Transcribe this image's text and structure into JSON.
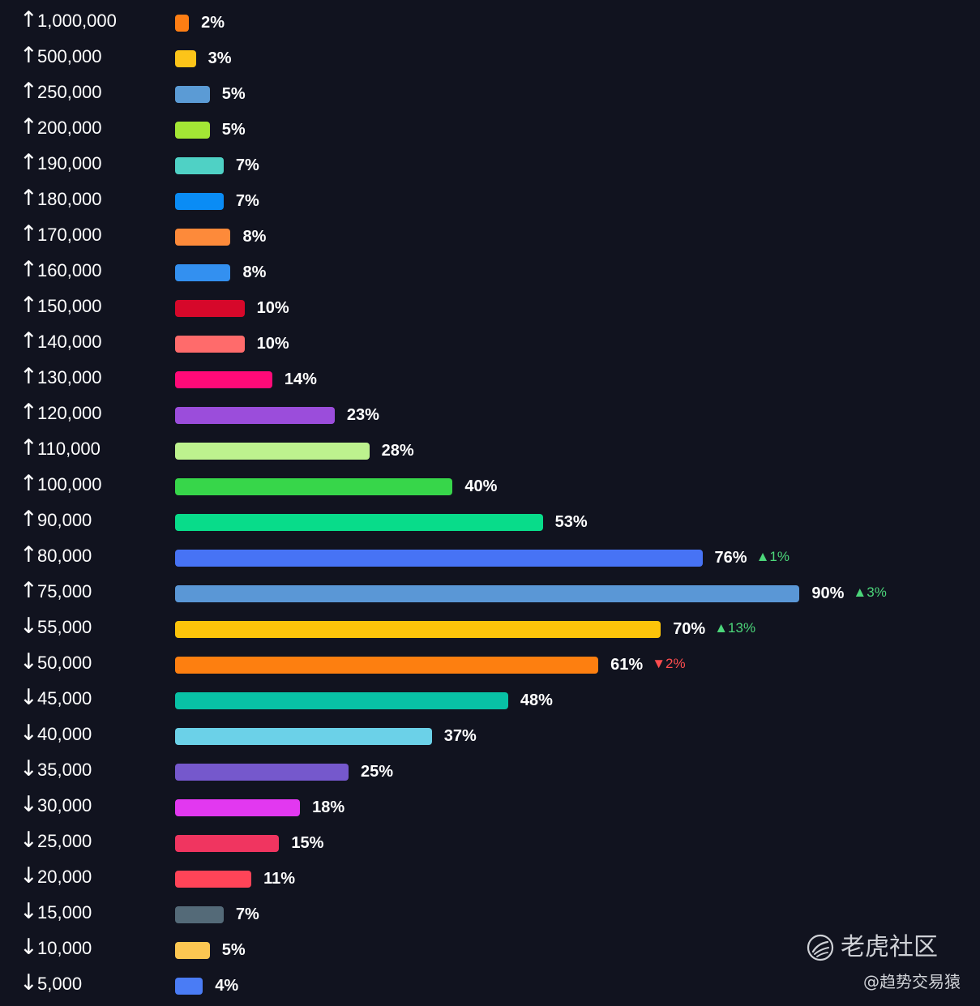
{
  "chart_data": {
    "type": "bar",
    "orientation": "horizontal",
    "title": "",
    "xlabel": "",
    "ylabel": "",
    "xlim": [
      0,
      100
    ],
    "rows": [
      {
        "direction": "↑",
        "label": "1,000,000",
        "value": 2,
        "pct_label": "2%",
        "color": "#fd7e14",
        "delta": null
      },
      {
        "direction": "↑",
        "label": "500,000",
        "value": 3,
        "pct_label": "3%",
        "color": "#fcc419",
        "delta": null
      },
      {
        "direction": "↑",
        "label": "250,000",
        "value": 5,
        "pct_label": "5%",
        "color": "#5b9bd5",
        "delta": null
      },
      {
        "direction": "↑",
        "label": "200,000",
        "value": 5,
        "pct_label": "5%",
        "color": "#a3e635",
        "delta": null
      },
      {
        "direction": "↑",
        "label": "190,000",
        "value": 7,
        "pct_label": "7%",
        "color": "#4fd1c5",
        "delta": null
      },
      {
        "direction": "↑",
        "label": "180,000",
        "value": 7,
        "pct_label": "7%",
        "color": "#0a8cf5",
        "delta": null
      },
      {
        "direction": "↑",
        "label": "170,000",
        "value": 8,
        "pct_label": "8%",
        "color": "#fd8a3a",
        "delta": null
      },
      {
        "direction": "↑",
        "label": "160,000",
        "value": 8,
        "pct_label": "8%",
        "color": "#3390f0",
        "delta": null
      },
      {
        "direction": "↑",
        "label": "150,000",
        "value": 10,
        "pct_label": "10%",
        "color": "#d6082a",
        "delta": null
      },
      {
        "direction": "↑",
        "label": "140,000",
        "value": 10,
        "pct_label": "10%",
        "color": "#ff6b6b",
        "delta": null
      },
      {
        "direction": "↑",
        "label": "130,000",
        "value": 14,
        "pct_label": "14%",
        "color": "#ff0a78",
        "delta": null
      },
      {
        "direction": "↑",
        "label": "120,000",
        "value": 23,
        "pct_label": "23%",
        "color": "#9b4ddb",
        "delta": null
      },
      {
        "direction": "↑",
        "label": "110,000",
        "value": 28,
        "pct_label": "28%",
        "color": "#bdf28e",
        "delta": null
      },
      {
        "direction": "↑",
        "label": "100,000",
        "value": 40,
        "pct_label": "40%",
        "color": "#37d64a",
        "delta": null
      },
      {
        "direction": "↑",
        "label": "90,000",
        "value": 53,
        "pct_label": "53%",
        "color": "#08dc8a",
        "delta": null
      },
      {
        "direction": "↑",
        "label": "80,000",
        "value": 76,
        "pct_label": "76%",
        "color": "#4773f5",
        "delta": {
          "dir": "up",
          "text": "▲1%"
        }
      },
      {
        "direction": "↑",
        "label": "75,000",
        "value": 90,
        "pct_label": "90%",
        "color": "#5a97d6",
        "delta": {
          "dir": "up",
          "text": "▲3%"
        }
      },
      {
        "direction": "↓",
        "label": "55,000",
        "value": 70,
        "pct_label": "70%",
        "color": "#fcc40a",
        "delta": {
          "dir": "up",
          "text": "▲13%"
        }
      },
      {
        "direction": "↓",
        "label": "50,000",
        "value": 61,
        "pct_label": "61%",
        "color": "#fd7f10",
        "delta": {
          "dir": "down",
          "text": "▼2%"
        }
      },
      {
        "direction": "↓",
        "label": "45,000",
        "value": 48,
        "pct_label": "48%",
        "color": "#08c1a5",
        "delta": null
      },
      {
        "direction": "↓",
        "label": "40,000",
        "value": 37,
        "pct_label": "37%",
        "color": "#6bd1e8",
        "delta": null
      },
      {
        "direction": "↓",
        "label": "35,000",
        "value": 25,
        "pct_label": "25%",
        "color": "#7558cc",
        "delta": null
      },
      {
        "direction": "↓",
        "label": "30,000",
        "value": 18,
        "pct_label": "18%",
        "color": "#e238f0",
        "delta": null
      },
      {
        "direction": "↓",
        "label": "25,000",
        "value": 15,
        "pct_label": "15%",
        "color": "#f03560",
        "delta": null
      },
      {
        "direction": "↓",
        "label": "20,000",
        "value": 11,
        "pct_label": "11%",
        "color": "#ff4458",
        "delta": null
      },
      {
        "direction": "↓",
        "label": "15,000",
        "value": 7,
        "pct_label": "7%",
        "color": "#546a78",
        "delta": null
      },
      {
        "direction": "↓",
        "label": "10,000",
        "value": 5,
        "pct_label": "5%",
        "color": "#fcc752",
        "delta": null
      },
      {
        "direction": "↓",
        "label": "5,000",
        "value": 4,
        "pct_label": "4%",
        "color": "#4a7cf5",
        "delta": null
      }
    ]
  },
  "watermark": {
    "title": "老虎社区",
    "subtitle": "@趋势交易猿"
  }
}
